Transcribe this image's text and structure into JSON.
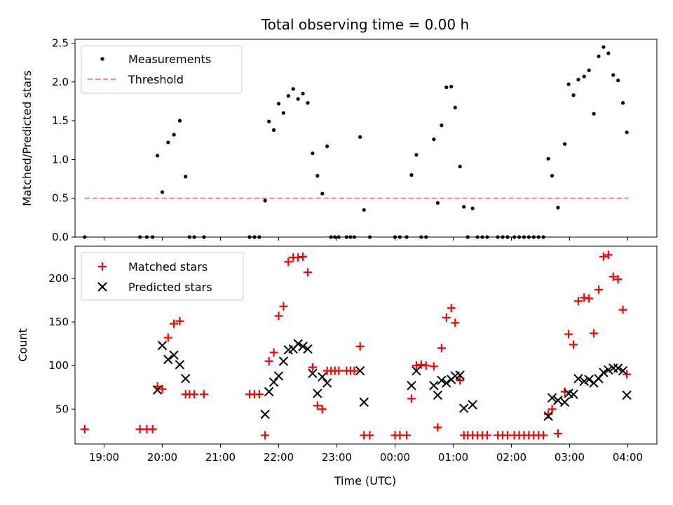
{
  "chart_data": [
    {
      "type": "scatter",
      "title": "Total observing time = 0.00 h",
      "xlabel": "",
      "ylabel": "Matched/Predicted stars",
      "ylim": [
        0,
        2.55
      ],
      "yticks": [
        "0.0",
        "0.5",
        "1.0",
        "1.5",
        "2.0",
        "2.5"
      ],
      "xlim": [
        "18:30",
        "04:30"
      ],
      "legend_position": "top-left",
      "series": [
        {
          "name": "Measurements",
          "color": "#000000",
          "marker": "dot",
          "points": [
            [
              "18:40",
              0
            ],
            [
              "19:37",
              0
            ],
            [
              "19:44",
              0
            ],
            [
              "19:50",
              0
            ],
            [
              "19:55",
              1.05
            ],
            [
              "20:00",
              0.58
            ],
            [
              "20:06",
              1.22
            ],
            [
              "20:12",
              1.32
            ],
            [
              "20:18",
              1.5
            ],
            [
              "20:24",
              0.78
            ],
            [
              "20:28",
              0
            ],
            [
              "20:33",
              0
            ],
            [
              "20:43",
              0
            ],
            [
              "21:30",
              0
            ],
            [
              "21:35",
              0
            ],
            [
              "21:40",
              0
            ],
            [
              "21:46",
              0.47
            ],
            [
              "21:50",
              1.49
            ],
            [
              "21:55",
              1.38
            ],
            [
              "22:00",
              1.72
            ],
            [
              "22:05",
              1.6
            ],
            [
              "22:10",
              1.82
            ],
            [
              "22:15",
              1.91
            ],
            [
              "22:20",
              1.78
            ],
            [
              "22:25",
              1.85
            ],
            [
              "22:30",
              1.73
            ],
            [
              "22:35",
              1.08
            ],
            [
              "22:40",
              0.79
            ],
            [
              "22:45",
              0.56
            ],
            [
              "22:50",
              1.17
            ],
            [
              "22:54",
              0
            ],
            [
              "22:58",
              0
            ],
            [
              "23:02",
              0
            ],
            [
              "23:10",
              0
            ],
            [
              "23:14",
              0
            ],
            [
              "23:18",
              0
            ],
            [
              "23:24",
              1.29
            ],
            [
              "23:28",
              0.35
            ],
            [
              "23:34",
              0
            ],
            [
              "24:00",
              0
            ],
            [
              "24:05",
              0
            ],
            [
              "24:12",
              0
            ],
            [
              "24:17",
              0.8
            ],
            [
              "24:22",
              1.06
            ],
            [
              "24:27",
              0
            ],
            [
              "24:32",
              0
            ],
            [
              "24:40",
              1.26
            ],
            [
              "24:44",
              0.44
            ],
            [
              "24:48",
              1.44
            ],
            [
              "24:53",
              1.93
            ],
            [
              "24:58",
              1.94
            ],
            [
              "25:02",
              1.67
            ],
            [
              "25:07",
              0.91
            ],
            [
              "25:11",
              0.39
            ],
            [
              "25:15",
              0
            ],
            [
              "25:20",
              0.37
            ],
            [
              "25:25",
              0
            ],
            [
              "25:30",
              0
            ],
            [
              "25:35",
              0
            ],
            [
              "25:46",
              0
            ],
            [
              "25:51",
              0
            ],
            [
              "25:56",
              0
            ],
            [
              "26:03",
              0
            ],
            [
              "26:08",
              0
            ],
            [
              "26:13",
              0
            ],
            [
              "26:18",
              0
            ],
            [
              "26:23",
              0
            ],
            [
              "26:28",
              0
            ],
            [
              "26:33",
              0
            ],
            [
              "26:38",
              1.01
            ],
            [
              "26:42",
              0.79
            ],
            [
              "26:48",
              0.38
            ],
            [
              "26:55",
              1.2
            ],
            [
              "26:59",
              1.97
            ],
            [
              "27:04",
              1.83
            ],
            [
              "27:09",
              2.03
            ],
            [
              "27:15",
              2.07
            ],
            [
              "27:20",
              2.15
            ],
            [
              "27:25",
              1.59
            ],
            [
              "27:30",
              2.33
            ],
            [
              "27:35",
              2.45
            ],
            [
              "27:40",
              2.37
            ],
            [
              "27:45",
              2.09
            ],
            [
              "27:50",
              2.02
            ],
            [
              "27:55",
              1.73
            ],
            [
              "27:59",
              1.35
            ]
          ]
        },
        {
          "name": "Threshold",
          "color": "#ff8080",
          "marker": "dashed-line",
          "points": [
            [
              "18:40",
              0.5
            ],
            [
              "28:01",
              0.5
            ]
          ]
        }
      ]
    },
    {
      "type": "scatter",
      "title": "",
      "xlabel": "Time (UTC)",
      "ylabel": "Count",
      "ylim": [
        10,
        237
      ],
      "yticks": [
        "50",
        "100",
        "150",
        "200"
      ],
      "xlim": [
        "18:30",
        "04:30"
      ],
      "xticks": [
        "19:00",
        "20:00",
        "21:00",
        "22:00",
        "23:00",
        "00:00",
        "01:00",
        "02:00",
        "03:00",
        "04:00"
      ],
      "legend_position": "top-left",
      "series": [
        {
          "name": "Matched stars",
          "color": "#ff0000",
          "marker": "plus",
          "points": [
            [
              "18:40",
              27
            ],
            [
              "19:37",
              27
            ],
            [
              "19:44",
              27
            ],
            [
              "19:50",
              27
            ],
            [
              "19:55",
              76
            ],
            [
              "20:00",
              73
            ],
            [
              "20:06",
              132
            ],
            [
              "20:12",
              148
            ],
            [
              "20:18",
              151
            ],
            [
              "20:24",
              67
            ],
            [
              "20:28",
              67
            ],
            [
              "20:33",
              67
            ],
            [
              "20:43",
              67
            ],
            [
              "21:30",
              67
            ],
            [
              "21:35",
              67
            ],
            [
              "21:40",
              67
            ],
            [
              "21:46",
              20
            ],
            [
              "21:50",
              105
            ],
            [
              "21:55",
              115
            ],
            [
              "22:00",
              157
            ],
            [
              "22:05",
              168
            ],
            [
              "22:10",
              219
            ],
            [
              "22:15",
              224
            ],
            [
              "22:20",
              224
            ],
            [
              "22:25",
              225
            ],
            [
              "22:30",
              207
            ],
            [
              "22:35",
              98
            ],
            [
              "22:40",
              54
            ],
            [
              "22:45",
              50
            ],
            [
              "22:50",
              94
            ],
            [
              "22:54",
              94
            ],
            [
              "22:58",
              94
            ],
            [
              "23:02",
              94
            ],
            [
              "23:10",
              94
            ],
            [
              "23:14",
              94
            ],
            [
              "23:18",
              94
            ],
            [
              "23:24",
              122
            ],
            [
              "23:28",
              20
            ],
            [
              "23:34",
              20
            ],
            [
              "24:00",
              20
            ],
            [
              "24:05",
              20
            ],
            [
              "24:12",
              20
            ],
            [
              "24:17",
              62
            ],
            [
              "24:22",
              100
            ],
            [
              "24:27",
              101
            ],
            [
              "24:32",
              100
            ],
            [
              "24:40",
              99
            ],
            [
              "24:44",
              29
            ],
            [
              "24:48",
              120
            ],
            [
              "24:53",
              155
            ],
            [
              "24:58",
              166
            ],
            [
              "25:02",
              149
            ],
            [
              "25:07",
              83
            ],
            [
              "25:11",
              20
            ],
            [
              "25:15",
              20
            ],
            [
              "25:20",
              20
            ],
            [
              "25:25",
              20
            ],
            [
              "25:30",
              20
            ],
            [
              "25:35",
              20
            ],
            [
              "25:46",
              20
            ],
            [
              "25:51",
              20
            ],
            [
              "25:56",
              20
            ],
            [
              "26:03",
              20
            ],
            [
              "26:08",
              20
            ],
            [
              "26:13",
              20
            ],
            [
              "26:18",
              20
            ],
            [
              "26:23",
              20
            ],
            [
              "26:28",
              20
            ],
            [
              "26:33",
              20
            ],
            [
              "26:38",
              44
            ],
            [
              "26:42",
              50
            ],
            [
              "26:48",
              22
            ],
            [
              "26:55",
              70
            ],
            [
              "26:59",
              136
            ],
            [
              "27:04",
              124
            ],
            [
              "27:09",
              174
            ],
            [
              "27:15",
              178
            ],
            [
              "27:20",
              177
            ],
            [
              "27:25",
              137
            ],
            [
              "27:30",
              187
            ],
            [
              "27:35",
              225
            ],
            [
              "27:40",
              227
            ],
            [
              "27:45",
              202
            ],
            [
              "27:50",
              199
            ],
            [
              "27:55",
              164
            ],
            [
              "27:59",
              90
            ]
          ]
        },
        {
          "name": "Predicted stars",
          "color": "#000000",
          "marker": "cross",
          "points": [
            [
              "19:55",
              72
            ],
            [
              "20:00",
              123
            ],
            [
              "20:06",
              107
            ],
            [
              "20:12",
              112
            ],
            [
              "20:18",
              101
            ],
            [
              "20:24",
              85
            ],
            [
              "21:46",
              44
            ],
            [
              "21:50",
              70
            ],
            [
              "21:55",
              81
            ],
            [
              "22:00",
              88
            ],
            [
              "22:05",
              105
            ],
            [
              "22:10",
              118
            ],
            [
              "22:15",
              119
            ],
            [
              "22:20",
              125
            ],
            [
              "22:25",
              122
            ],
            [
              "22:30",
              119
            ],
            [
              "22:35",
              91
            ],
            [
              "22:40",
              68
            ],
            [
              "22:45",
              87
            ],
            [
              "22:50",
              80
            ],
            [
              "23:24",
              94
            ],
            [
              "23:28",
              58
            ],
            [
              "24:17",
              77
            ],
            [
              "24:22",
              94
            ],
            [
              "24:40",
              77
            ],
            [
              "24:44",
              66
            ],
            [
              "24:48",
              83
            ],
            [
              "24:53",
              80
            ],
            [
              "24:58",
              84
            ],
            [
              "25:02",
              88
            ],
            [
              "25:07",
              89
            ],
            [
              "25:11",
              51
            ],
            [
              "25:20",
              55
            ],
            [
              "26:38",
              42
            ],
            [
              "26:42",
              63
            ],
            [
              "26:48",
              60
            ],
            [
              "26:55",
              58
            ],
            [
              "26:59",
              68
            ],
            [
              "27:04",
              67
            ],
            [
              "27:09",
              85
            ],
            [
              "27:15",
              82
            ],
            [
              "27:20",
              84
            ],
            [
              "27:25",
              80
            ],
            [
              "27:30",
              85
            ],
            [
              "27:35",
              92
            ],
            [
              "27:40",
              95
            ],
            [
              "27:45",
              97
            ],
            [
              "27:50",
              97
            ],
            [
              "27:55",
              94
            ],
            [
              "27:59",
              66
            ]
          ]
        }
      ]
    }
  ]
}
